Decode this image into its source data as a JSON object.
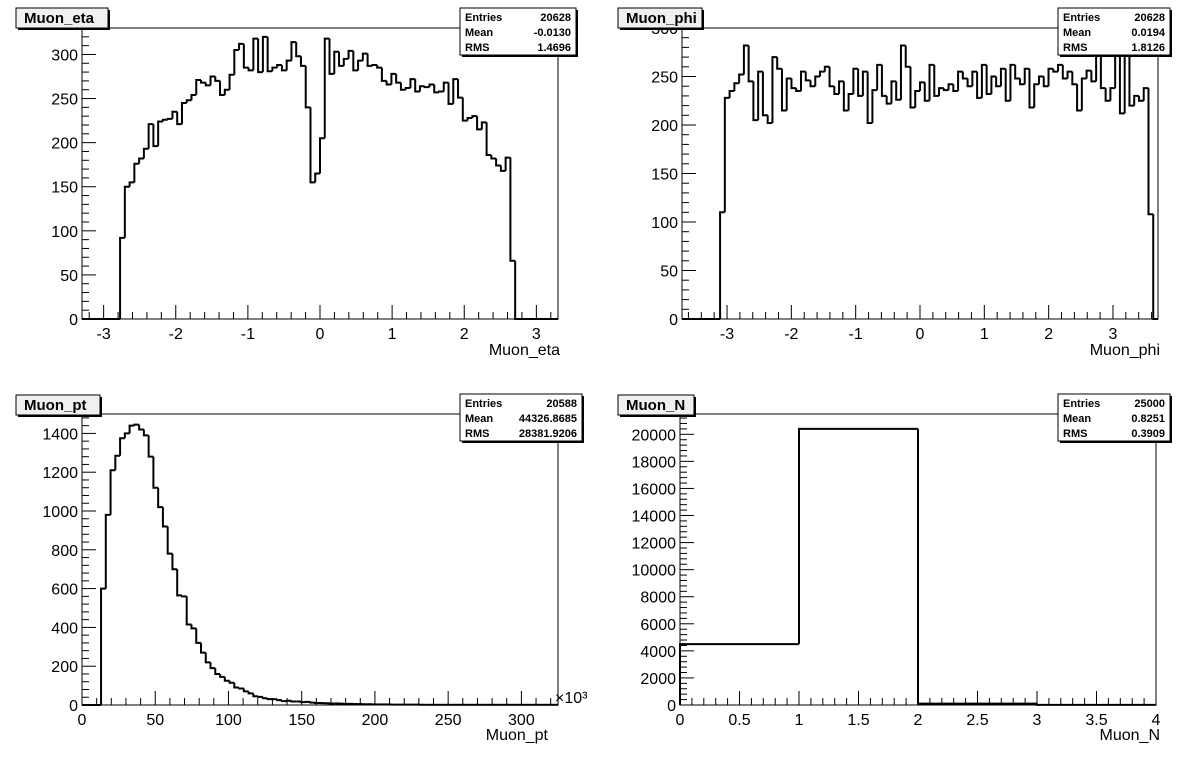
{
  "chart_data": [
    {
      "type": "bar",
      "title": "Muon_eta",
      "xlabel": "Muon_eta",
      "ylabel": "",
      "xlim": [
        -3.3,
        3.3
      ],
      "ylim": [
        0,
        330
      ],
      "xticks": [
        -3,
        -2,
        -1,
        0,
        1,
        2,
        3
      ],
      "xtick_labels": [
        "-3",
        "-2",
        "-1",
        "0",
        "1",
        "2",
        "3"
      ],
      "yticks": [
        0,
        50,
        100,
        150,
        200,
        250,
        300
      ],
      "ytick_labels": [
        "0",
        "50",
        "100",
        "150",
        "200",
        "250",
        "300"
      ],
      "bin_edges_start": -3.3,
      "bin_width": 0.066,
      "values": [
        0,
        0,
        0,
        0,
        0,
        0,
        0,
        0,
        92,
        150,
        155,
        176,
        182,
        193,
        221,
        196,
        224,
        226,
        227,
        235,
        221,
        245,
        248,
        254,
        271,
        268,
        265,
        275,
        270,
        254,
        260,
        277,
        305,
        312,
        285,
        282,
        318,
        280,
        320,
        281,
        285,
        288,
        282,
        293,
        314,
        298,
        287,
        240,
        155,
        165,
        205,
        318,
        278,
        303,
        287,
        295,
        304,
        282,
        293,
        301,
        287,
        288,
        285,
        270,
        266,
        278,
        268,
        260,
        262,
        272,
        258,
        264,
        263,
        266,
        257,
        258,
        268,
        244,
        272,
        251,
        225,
        228,
        230,
        215,
        223,
        186,
        182,
        174,
        168,
        183,
        66,
        0,
        0,
        0,
        0,
        0,
        0,
        0,
        0,
        0
      ],
      "stats": {
        "entries_label": "Entries",
        "entries": "20628",
        "mean_label": "Mean",
        "mean": "-0.0130",
        "rms_label": "RMS",
        "rms": "1.4696"
      }
    },
    {
      "type": "bar",
      "title": "Muon_phi",
      "xlabel": "Muon_phi",
      "ylabel": "",
      "xlim": [
        -3.7,
        3.7
      ],
      "ylim": [
        0,
        300
      ],
      "xticks": [
        -3,
        -2,
        -1,
        0,
        1,
        2,
        3
      ],
      "xtick_labels": [
        "-3",
        "-2",
        "-1",
        "0",
        "1",
        "2",
        "3"
      ],
      "yticks": [
        0,
        50,
        100,
        150,
        200,
        250,
        300
      ],
      "ytick_labels": [
        "0",
        "50",
        "100",
        "150",
        "200",
        "250",
        "300"
      ],
      "bin_edges_start": -3.7,
      "bin_width": 0.074,
      "values": [
        0,
        0,
        0,
        0,
        0,
        0,
        0,
        0,
        110,
        228,
        235,
        243,
        252,
        282,
        245,
        205,
        255,
        210,
        202,
        270,
        258,
        215,
        248,
        238,
        235,
        255,
        246,
        240,
        250,
        255,
        260,
        240,
        232,
        245,
        215,
        232,
        258,
        230,
        255,
        202,
        236,
        262,
        230,
        222,
        245,
        226,
        282,
        260,
        218,
        235,
        244,
        225,
        262,
        230,
        238,
        236,
        242,
        235,
        255,
        248,
        240,
        255,
        228,
        262,
        232,
        250,
        240,
        258,
        225,
        262,
        248,
        242,
        258,
        218,
        242,
        250,
        240,
        258,
        255,
        262,
        248,
        255,
        242,
        215,
        248,
        256,
        245,
        280,
        238,
        225,
        238,
        300,
        212,
        298,
        220,
        230,
        225,
        238,
        108,
        0
      ],
      "stats": {
        "entries_label": "Entries",
        "entries": "20628",
        "mean_label": "Mean",
        "mean": "0.0194",
        "rms_label": "RMS",
        "rms": "1.8126"
      }
    },
    {
      "type": "bar",
      "title": "Muon_pt",
      "xlabel": "Muon_pt",
      "ylabel": "",
      "x_multiplier": "×10³",
      "xlim": [
        0,
        325
      ],
      "ylim": [
        0,
        1500
      ],
      "xticks": [
        0,
        50,
        100,
        150,
        200,
        250,
        300
      ],
      "xtick_labels": [
        "0",
        "50",
        "100",
        "150",
        "200",
        "250",
        "300"
      ],
      "yticks": [
        0,
        200,
        400,
        600,
        800,
        1000,
        1200,
        1400
      ],
      "ytick_labels": [
        "0",
        "200",
        "400",
        "600",
        "800",
        "1000",
        "1200",
        "1400"
      ],
      "bin_edges_start": 0,
      "bin_width": 3.25,
      "values": [
        0,
        0,
        0,
        0,
        600,
        980,
        1210,
        1285,
        1375,
        1400,
        1440,
        1445,
        1420,
        1390,
        1280,
        1120,
        1020,
        920,
        780,
        700,
        565,
        560,
        415,
        395,
        320,
        270,
        220,
        190,
        160,
        145,
        125,
        115,
        90,
        85,
        70,
        60,
        45,
        42,
        35,
        30,
        30,
        25,
        20,
        22,
        18,
        18,
        15,
        16,
        12,
        10,
        10,
        9,
        8,
        8,
        7,
        6,
        6,
        5,
        5,
        4,
        4,
        3,
        3,
        3,
        3,
        2,
        2,
        2,
        2,
        2,
        2,
        1,
        1,
        1,
        1,
        1,
        1,
        1,
        1,
        1,
        1,
        1,
        1,
        1,
        1,
        1,
        1,
        1,
        1,
        1,
        1,
        1,
        1,
        1,
        1,
        1,
        1,
        1,
        1,
        1
      ],
      "stats": {
        "entries_label": "Entries",
        "entries": "20588",
        "mean_label": "Mean",
        "mean": "44326.8685",
        "rms_label": "RMS",
        "rms": "28381.9206"
      }
    },
    {
      "type": "bar",
      "title": "Muon_N",
      "xlabel": "Muon_N",
      "ylabel": "",
      "xlim": [
        0,
        4
      ],
      "ylim": [
        0,
        21500
      ],
      "xticks": [
        0,
        0.5,
        1,
        1.5,
        2,
        2.5,
        3,
        3.5,
        4
      ],
      "xtick_labels": [
        "0",
        "0.5",
        "1",
        "1.5",
        "2",
        "2.5",
        "3",
        "3.5",
        "4"
      ],
      "yticks": [
        0,
        2000,
        4000,
        6000,
        8000,
        10000,
        12000,
        14000,
        16000,
        18000,
        20000
      ],
      "ytick_labels": [
        "0",
        "2000",
        "4000",
        "6000",
        "8000",
        "10000",
        "12000",
        "14000",
        "16000",
        "18000",
        "20000"
      ],
      "bin_edges_start": 0,
      "bin_width": 1,
      "values": [
        4500,
        20400,
        100,
        5
      ],
      "stats": {
        "entries_label": "Entries",
        "entries": "25000",
        "mean_label": "Mean",
        "mean": "0.8251",
        "rms_label": "RMS",
        "rms": "0.3909"
      }
    }
  ]
}
